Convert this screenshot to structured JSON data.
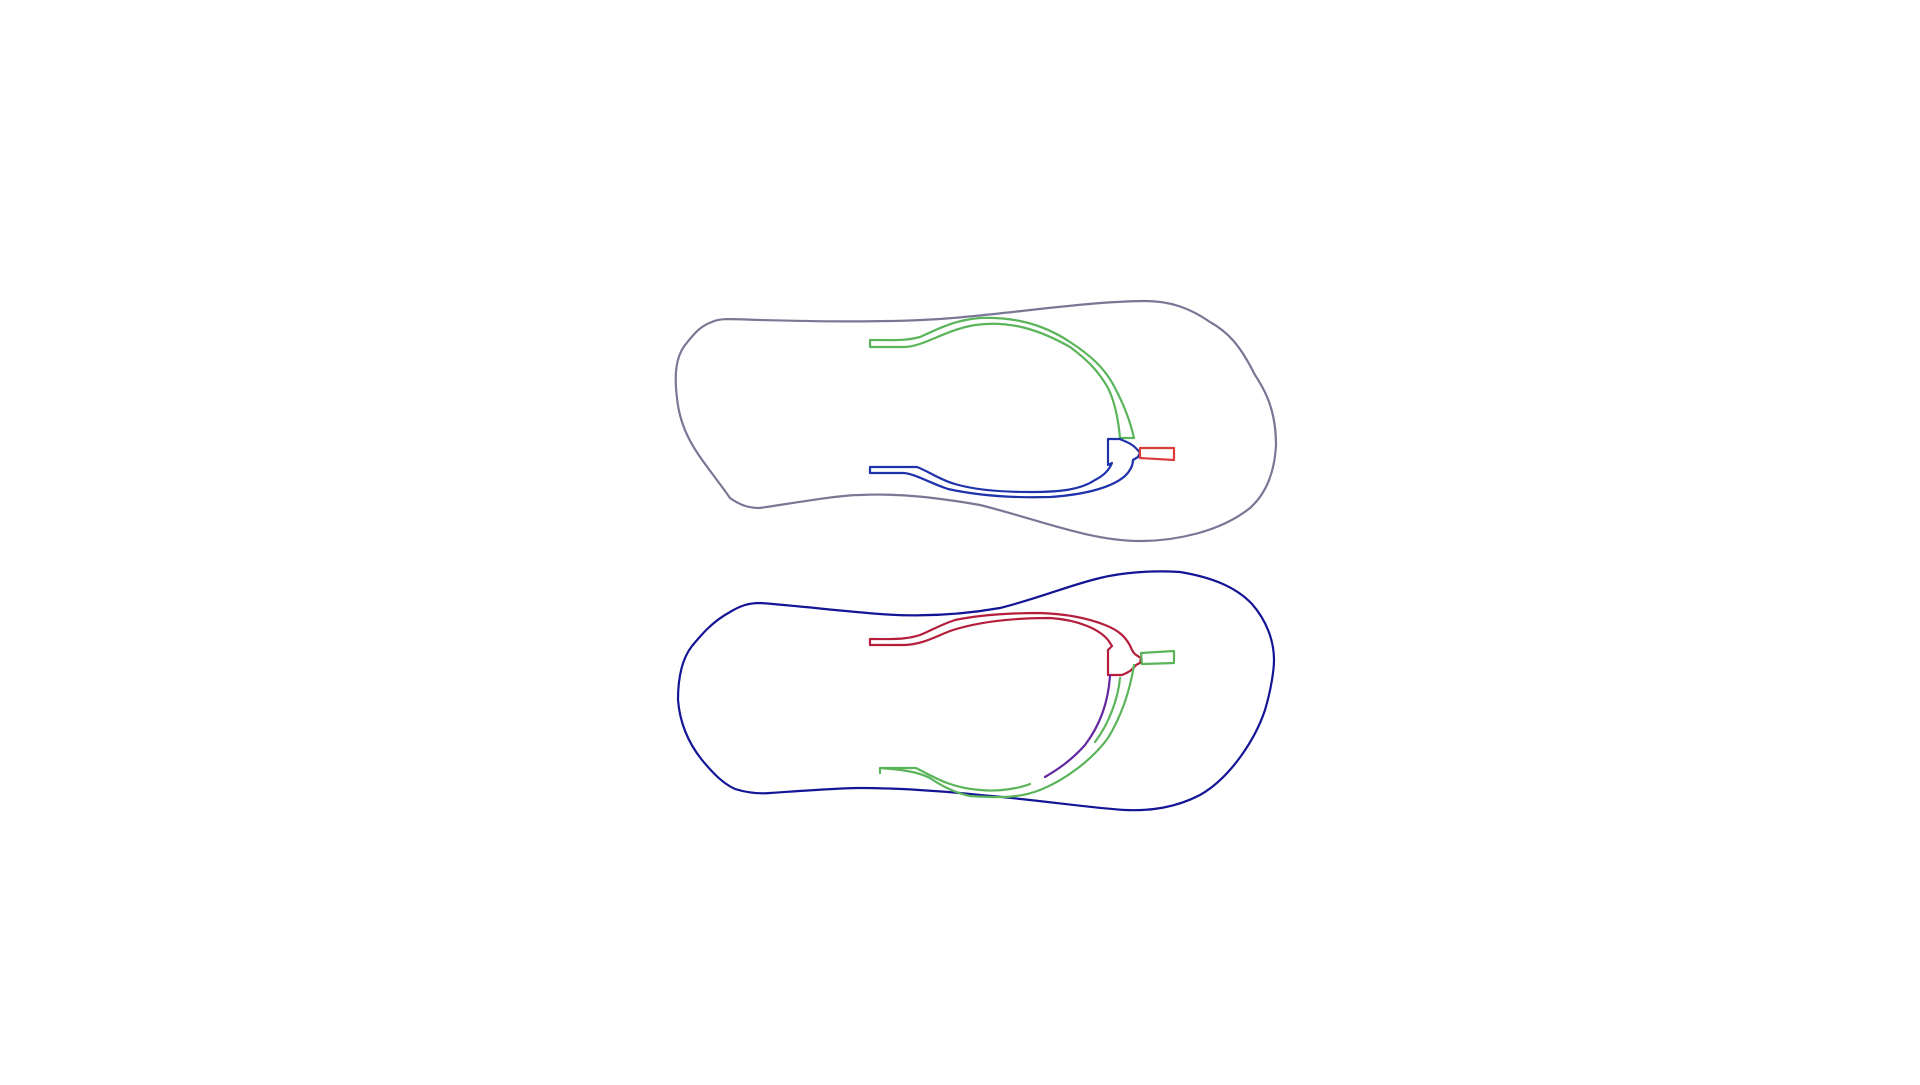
{
  "drawing": {
    "colors": {
      "sole_top": "#787896",
      "sole_bottom": "#141496",
      "strap_green": "#5ab45a",
      "strap_blue": "#1e32aa",
      "strap_red": "#b41e3c",
      "plug_red": "#dc3c3c",
      "strap_purple": "#6428a0"
    },
    "sandals": [
      {
        "name": "top-sandal-outline"
      },
      {
        "name": "bottom-sandal-outline"
      }
    ]
  }
}
